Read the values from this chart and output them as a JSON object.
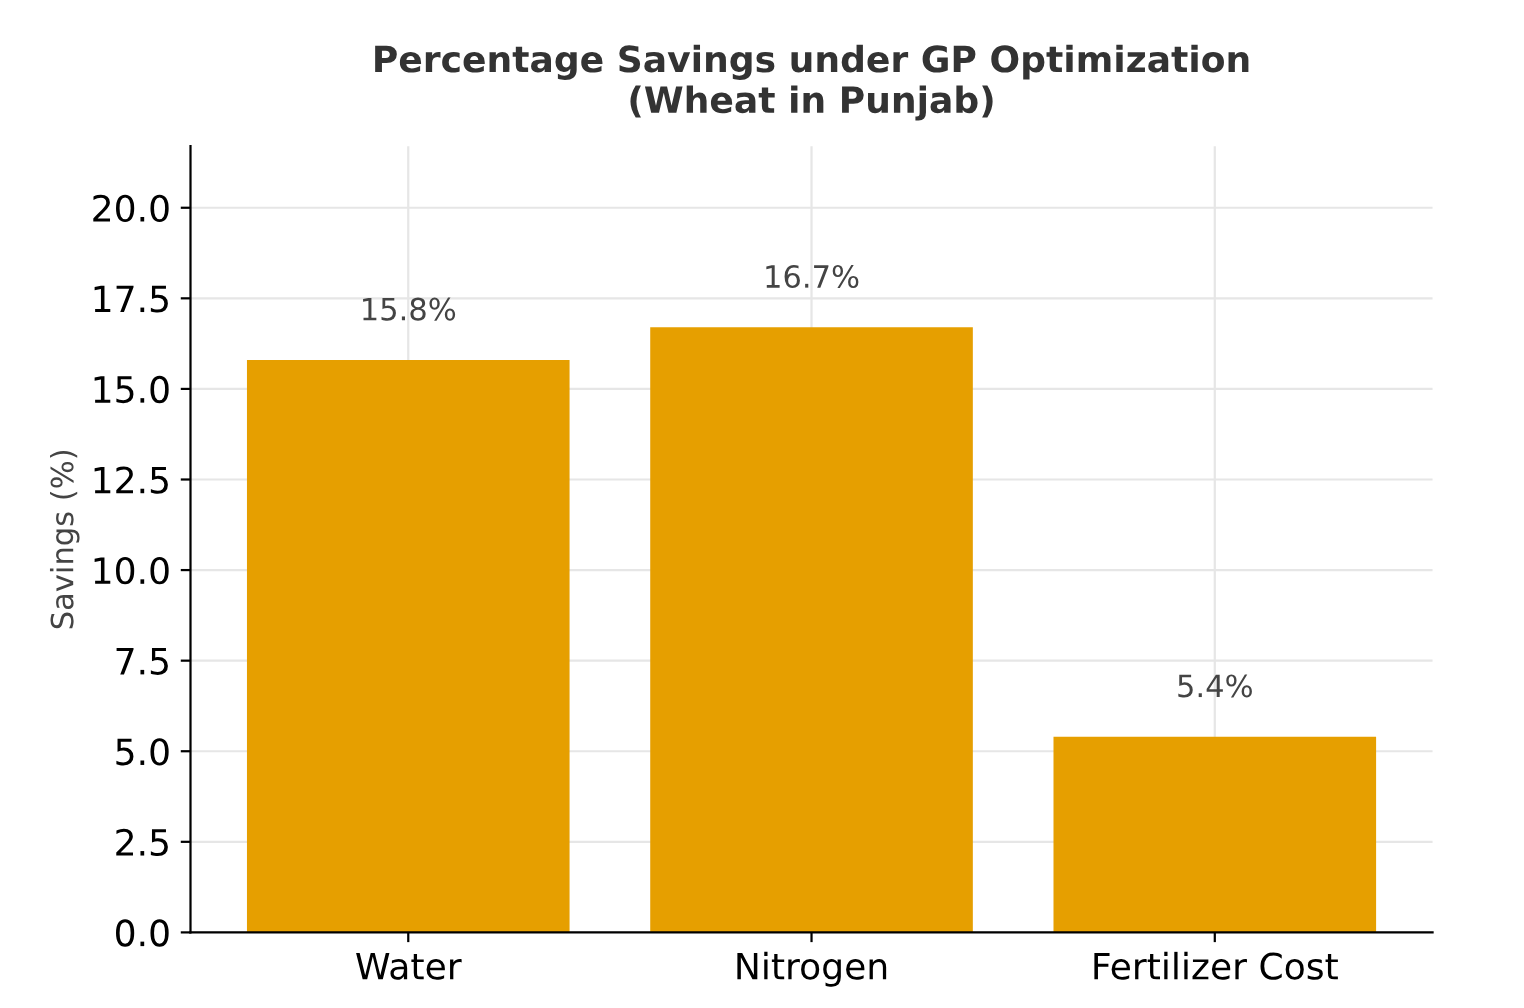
{
  "chart_data": {
    "type": "bar",
    "title": "Percentage Savings under GP Optimization\n(Wheat in Punjab)",
    "ylabel": "Savings (%)",
    "categories": [
      "Water",
      "Nitrogen",
      "Fertilizer Cost"
    ],
    "values": [
      15.8,
      16.7,
      5.4
    ],
    "color": "#e69f00",
    "value_labels": [
      "15.8%",
      "16.7%",
      "5.4%"
    ],
    "ylim": [
      0,
      21.7
    ],
    "yticks": [
      {
        "value": 0,
        "label": "0.0"
      },
      {
        "value": 2.5,
        "label": "2.5"
      },
      {
        "value": 5,
        "label": "5.0"
      },
      {
        "value": 7.5,
        "label": "7.5"
      },
      {
        "value": 10,
        "label": "10.0"
      },
      {
        "value": 12.5,
        "label": "12.5"
      },
      {
        "value": 15,
        "label": "15.0"
      },
      {
        "value": 17.5,
        "label": "17.5"
      },
      {
        "value": 20,
        "label": "20.0"
      }
    ],
    "grid": true
  }
}
